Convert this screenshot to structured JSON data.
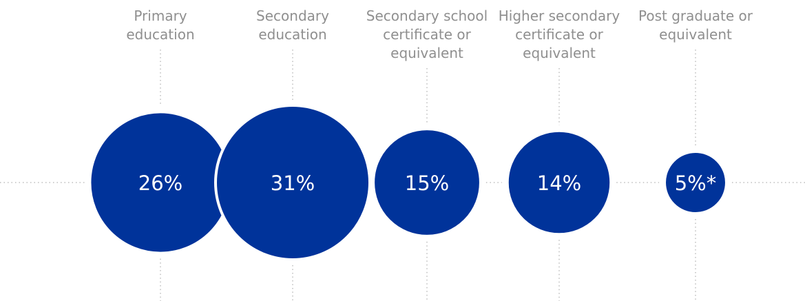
{
  "chart_data": {
    "type": "bubble",
    "colors": {
      "bubble": "#00339a",
      "guide": "#bdbdbd",
      "label": "#8f8f8f",
      "value_text": "#ffffff"
    },
    "categories": [
      "Primary\neducation",
      "Secondary\neducation",
      "Secondary school\ncertificate or\nequivalent",
      "Higher secondary\ncertificate or\nequivalent",
      "Post graduate or\nequivalent"
    ],
    "values": [
      26,
      31,
      15,
      14,
      5
    ],
    "value_labels": [
      "26%",
      "31%",
      "15%",
      "14%",
      "5%*"
    ]
  }
}
